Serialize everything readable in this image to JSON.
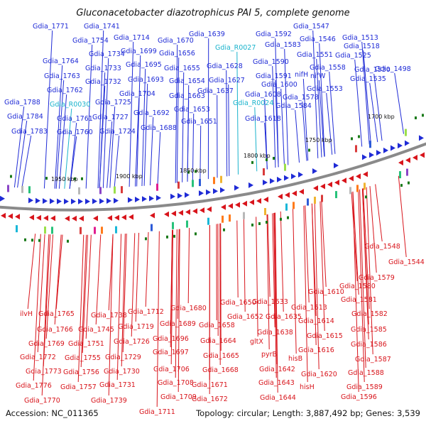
{
  "title": "Gluconacetobacter diazotrophicus PAI 5, complete genome",
  "footer": {
    "accession": "Accession: NC_011365",
    "summary": "Topology: circular; Length: 3,887,492 bp; Genes: 3,539"
  },
  "colors": {
    "forward": "#1f2bd6",
    "reverse": "#d8141b",
    "rna": "#1ab3cc",
    "backbone": "#8a8a8a",
    "marker": "#1a7a1a"
  },
  "kbp_ticks": [
    "1950 kbp",
    "1900 kbp",
    "1850 kbp",
    "1800 kbp",
    "1750 kbp",
    "1700 kbp"
  ],
  "top_labels": [
    {
      "text": "Gdia_1771",
      "kind": "blue"
    },
    {
      "text": "Gdia_1741",
      "kind": "blue"
    },
    {
      "text": "Gdia_1754",
      "kind": "blue"
    },
    {
      "text": "Gdia_1714",
      "kind": "blue"
    },
    {
      "text": "Gdia_1670",
      "kind": "blue"
    },
    {
      "text": "Gdia_1639",
      "kind": "blue"
    },
    {
      "text": "Gdia_1592",
      "kind": "blue"
    },
    {
      "text": "Gdia_1547",
      "kind": "blue"
    },
    {
      "text": "Gdia_1546",
      "kind": "blue"
    },
    {
      "text": "Gdia_1513",
      "kind": "blue"
    },
    {
      "text": "Gdia_1518",
      "kind": "blue"
    },
    {
      "text": "Gdia_R0027",
      "kind": "cyan"
    },
    {
      "text": "Gdia_1583",
      "kind": "blue"
    },
    {
      "text": "Gdia_1734",
      "kind": "blue"
    },
    {
      "text": "Gdia_1699",
      "kind": "blue"
    },
    {
      "text": "Gdia_1656",
      "kind": "blue"
    },
    {
      "text": "Gdia_1551",
      "kind": "blue"
    },
    {
      "text": "Gdia_1525",
      "kind": "blue"
    },
    {
      "text": "Gdia_1764",
      "kind": "blue"
    },
    {
      "text": "Gdia_1695",
      "kind": "blue"
    },
    {
      "text": "Gdia_1628",
      "kind": "blue"
    },
    {
      "text": "Gdia_1590",
      "kind": "blue"
    },
    {
      "text": "Gdia_1558",
      "kind": "blue"
    },
    {
      "text": "Gdia_1733",
      "kind": "blue"
    },
    {
      "text": "Gdia_1655",
      "kind": "blue"
    },
    {
      "text": "Gdia_1530",
      "kind": "blue"
    },
    {
      "text": "Gdia_1498",
      "kind": "blue"
    },
    {
      "text": "Gdia_1763",
      "kind": "blue"
    },
    {
      "text": "Gdia_1693",
      "kind": "blue"
    },
    {
      "text": "Gdia_1627",
      "kind": "blue"
    },
    {
      "text": "Gdia_1591",
      "kind": "blue"
    },
    {
      "text": "nifH",
      "kind": "blue"
    },
    {
      "text": "nifW",
      "kind": "blue"
    },
    {
      "text": "Gdia_1732",
      "kind": "blue"
    },
    {
      "text": "Gdia_1654",
      "kind": "blue"
    },
    {
      "text": "Gdia_1600",
      "kind": "blue"
    },
    {
      "text": "Gdia_1535",
      "kind": "blue"
    },
    {
      "text": "Gdia_1762",
      "kind": "blue"
    },
    {
      "text": "Gdia_1637",
      "kind": "blue"
    },
    {
      "text": "Gdia_1553",
      "kind": "blue"
    },
    {
      "text": "Gdia_1704",
      "kind": "blue"
    },
    {
      "text": "Gdia_1663",
      "kind": "blue"
    },
    {
      "text": "Gdia_1608",
      "kind": "blue"
    },
    {
      "text": "Gdia_1578",
      "kind": "blue"
    },
    {
      "text": "Gdia_1788",
      "kind": "blue"
    },
    {
      "text": "Gdia_R0030",
      "kind": "cyan"
    },
    {
      "text": "Gdia_1725",
      "kind": "blue"
    },
    {
      "text": "Gdia_R0024",
      "kind": "cyan"
    },
    {
      "text": "Gdia_1584",
      "kind": "blue"
    },
    {
      "text": "Gdia_1653",
      "kind": "blue"
    },
    {
      "text": "Gdia_1692",
      "kind": "blue"
    },
    {
      "text": "Gdia_1784",
      "kind": "blue"
    },
    {
      "text": "Gdia_1761",
      "kind": "blue"
    },
    {
      "text": "Gdia_1727",
      "kind": "blue"
    },
    {
      "text": "Gdia_1651",
      "kind": "blue"
    },
    {
      "text": "Gdia_1618",
      "kind": "blue"
    },
    {
      "text": "Gdia_1688",
      "kind": "blue"
    },
    {
      "text": "Gdia_1783",
      "kind": "blue"
    },
    {
      "text": "Gdia_1760",
      "kind": "blue"
    },
    {
      "text": "Gdia_1724",
      "kind": "blue"
    }
  ],
  "bottom_labels": [
    {
      "text": "Gdia_1548"
    },
    {
      "text": "Gdia_1544"
    },
    {
      "text": "Gdia_1579"
    },
    {
      "text": "Gdia_1580"
    },
    {
      "text": "Gdia_1610"
    },
    {
      "text": "Gdia_1581"
    },
    {
      "text": "Gdia_1650"
    },
    {
      "text": "Gdia_1633"
    },
    {
      "text": "Gdia_1613"
    },
    {
      "text": "Gdia_1680"
    },
    {
      "text": "Gdia_1712"
    },
    {
      "text": "Gdia_1652"
    },
    {
      "text": "Gdia_1635"
    },
    {
      "text": "Gdia_1582"
    },
    {
      "text": "ilvH"
    },
    {
      "text": "Gdia_1765"
    },
    {
      "text": "Gdia_1738"
    },
    {
      "text": "Gdia_1689"
    },
    {
      "text": "Gdia_1614"
    },
    {
      "text": "Gdia_1719"
    },
    {
      "text": "Gdia_1658"
    },
    {
      "text": "Gdia_1766"
    },
    {
      "text": "Gdia_1745"
    },
    {
      "text": "Gdia_1638"
    },
    {
      "text": "Gdia_1585"
    },
    {
      "text": "Gdia_1726"
    },
    {
      "text": "Gdia_1696"
    },
    {
      "text": "Gdia_1615"
    },
    {
      "text": "Gdia_1664"
    },
    {
      "text": "Gdia_1769"
    },
    {
      "text": "Gdia_1751"
    },
    {
      "text": "gltX"
    },
    {
      "text": "Gdia_1586"
    },
    {
      "text": "Gdia_1697"
    },
    {
      "text": "Gdia_1616"
    },
    {
      "text": "Gdia_1729"
    },
    {
      "text": "hisB"
    },
    {
      "text": "Gdia_1772"
    },
    {
      "text": "pyrB"
    },
    {
      "text": "Gdia_1755"
    },
    {
      "text": "Gdia_1665"
    },
    {
      "text": "Gdia_1587"
    },
    {
      "text": "Gdia_1706"
    },
    {
      "text": "Gdia_1773"
    },
    {
      "text": "Gdia_1668"
    },
    {
      "text": "Gdia_1642"
    },
    {
      "text": "Gdia_1756"
    },
    {
      "text": "Gdia_1730"
    },
    {
      "text": "Gdia_1620"
    },
    {
      "text": "Gdia_1588"
    },
    {
      "text": "Gdia_1708"
    },
    {
      "text": "Gdia_1643"
    },
    {
      "text": "Gdia_1776"
    },
    {
      "text": "Gdia_1731"
    },
    {
      "text": "Gdia_1671"
    },
    {
      "text": "hisH"
    },
    {
      "text": "Gdia_1757"
    },
    {
      "text": "Gdia_1589"
    },
    {
      "text": "Gdia_1709"
    },
    {
      "text": "Gdia_1672"
    },
    {
      "text": "Gdia_1644"
    },
    {
      "text": "Gdia_1596"
    },
    {
      "text": "Gdia_1770"
    },
    {
      "text": "Gdia_1739"
    },
    {
      "text": "Gdia_1711"
    }
  ]
}
